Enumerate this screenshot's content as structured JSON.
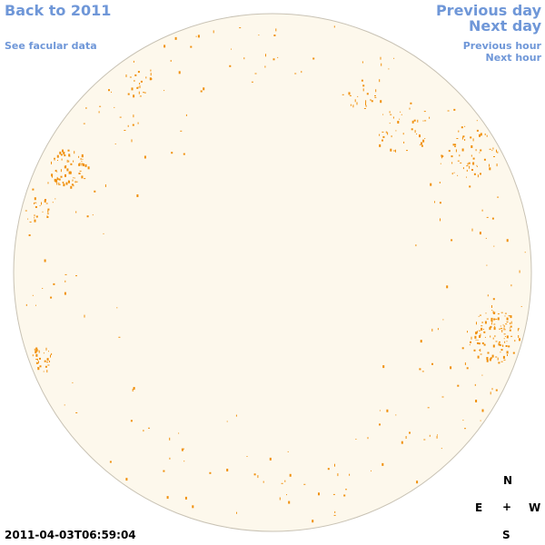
{
  "nav": {
    "back_label": "Back to 2011",
    "facular_label": "See facular data",
    "prev_day_label": "Previous day",
    "next_day_label": "Next day",
    "prev_hour_label": "Previous hour",
    "next_hour_label": "Next hour"
  },
  "compass": {
    "north": "N",
    "east": "E",
    "west": "W",
    "south": "S",
    "center": "+"
  },
  "timestamp": "2011-04-03T06:59:04",
  "colors": {
    "link": "#6f97d8",
    "disk_fill": "#fdf8ec",
    "disk_stroke": "#c8c2b4",
    "feature": "#f0900d"
  }
}
